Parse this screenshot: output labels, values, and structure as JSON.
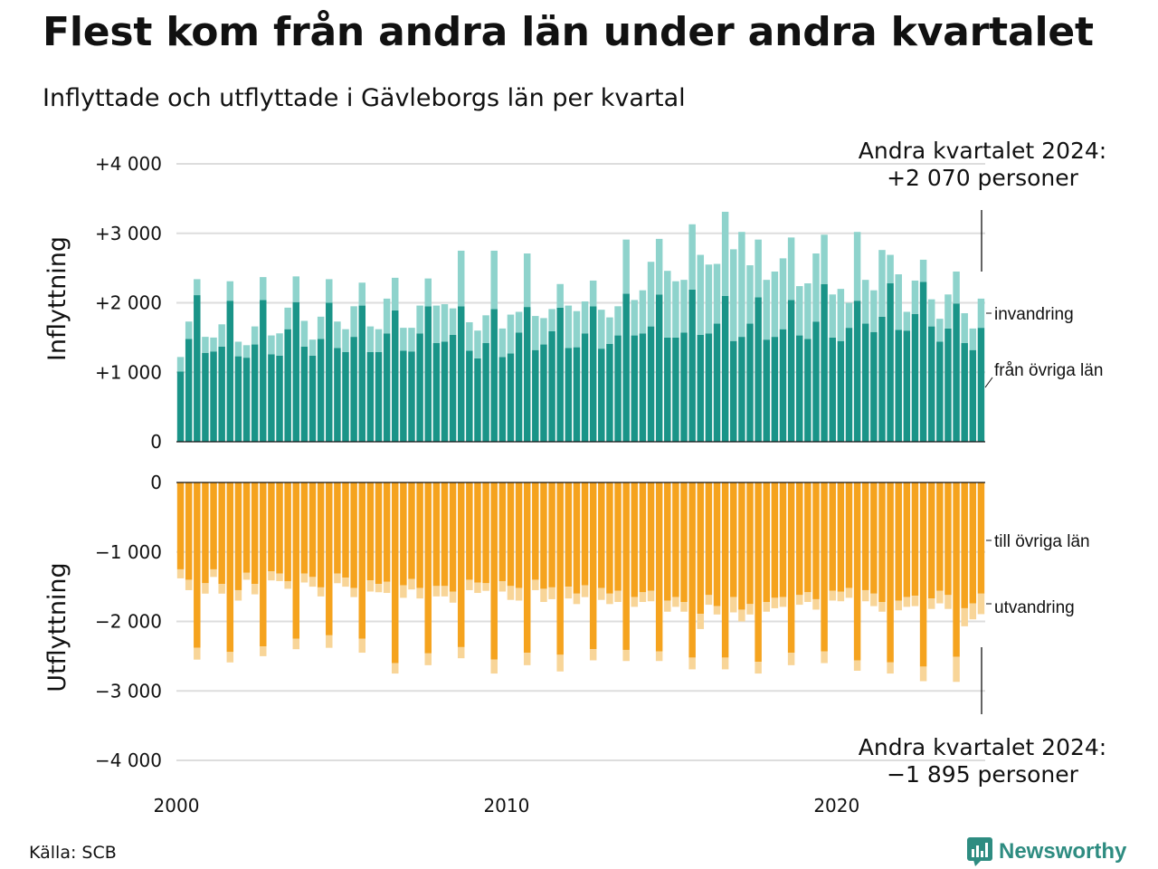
{
  "header": {
    "title": "Flest kom från andra län under andra kvartalet",
    "subtitle": "Inflyttade och utflyttade i Gävleborgs län per kvartal"
  },
  "footer": {
    "source": "Källa: SCB",
    "logo_text": "Newsworthy",
    "logo_icon": "bar-chart-speech-bubble-icon"
  },
  "colors": {
    "domestic_in": "#1a9488",
    "immigration": "#8ed3cc",
    "domestic_out": "#f5a31e",
    "emigration": "#f8d598",
    "grid": "#dddddd",
    "logo": "#2e8c81"
  },
  "chart_data": {
    "type": "bar",
    "x_start_quarter": "2000 Q1",
    "x_ticks": [
      "2000",
      "2010",
      "2020"
    ],
    "upper": {
      "ylabel": "Inflyttning",
      "ylim": [
        0,
        4000
      ],
      "y_ticks": [
        0,
        1000,
        2000,
        3000,
        4000
      ],
      "y_tick_labels": [
        "0",
        "+1 000",
        "+2 000",
        "+3 000",
        "+4 000"
      ],
      "series": [
        {
          "name": "från övriga län",
          "values": [
            1010,
            1480,
            2110,
            1280,
            1300,
            1370,
            2030,
            1230,
            1210,
            1400,
            2040,
            1260,
            1240,
            1620,
            2010,
            1370,
            1240,
            1480,
            2000,
            1350,
            1290,
            1510,
            1960,
            1290,
            1290,
            1560,
            1890,
            1310,
            1300,
            1560,
            1950,
            1420,
            1440,
            1540,
            1950,
            1310,
            1200,
            1420,
            1910,
            1220,
            1270,
            1570,
            1940,
            1320,
            1400,
            1590,
            1930,
            1350,
            1360,
            1560,
            1950,
            1340,
            1410,
            1530,
            2130,
            1530,
            1560,
            1660,
            2120,
            1500,
            1500,
            1570,
            2190,
            1540,
            1560,
            1700,
            2100,
            1450,
            1510,
            1700,
            2080,
            1470,
            1510,
            1620,
            2040,
            1530,
            1480,
            1730,
            2270,
            1500,
            1450,
            1640,
            2030,
            1700,
            1580,
            1800,
            2280,
            1610,
            1600,
            1840,
            2300,
            1660,
            1440,
            1630,
            1990,
            1420,
            1320,
            1640
          ]
        },
        {
          "name": "invandring",
          "values": [
            210,
            250,
            230,
            230,
            200,
            320,
            280,
            210,
            180,
            260,
            330,
            270,
            320,
            310,
            370,
            370,
            230,
            320,
            340,
            380,
            330,
            440,
            330,
            370,
            330,
            500,
            470,
            330,
            340,
            400,
            400,
            540,
            540,
            380,
            800,
            410,
            400,
            400,
            840,
            410,
            560,
            300,
            770,
            490,
            380,
            320,
            340,
            610,
            520,
            460,
            370,
            560,
            380,
            420,
            780,
            510,
            620,
            930,
            800,
            960,
            810,
            760,
            940,
            1150,
            990,
            860,
            1210,
            1320,
            1510,
            840,
            830,
            860,
            940,
            1020,
            900,
            710,
            800,
            980,
            710,
            620,
            750,
            360,
            990,
            630,
            600,
            960,
            410,
            800,
            270,
            480,
            320,
            390,
            330,
            490,
            460,
            430,
            310,
            420
          ]
        }
      ]
    },
    "lower": {
      "ylabel": "Utflyttning",
      "ylim": [
        -4000,
        0
      ],
      "y_ticks": [
        0,
        -1000,
        -2000,
        -3000,
        -4000
      ],
      "y_tick_labels": [
        "0",
        "−1 000",
        "−2 000",
        "−3 000",
        "−4 000"
      ],
      "series": [
        {
          "name": "till övriga län",
          "values": [
            -1250,
            -1400,
            -2380,
            -1450,
            -1250,
            -1460,
            -2440,
            -1550,
            -1300,
            -1460,
            -2360,
            -1280,
            -1310,
            -1420,
            -2250,
            -1310,
            -1360,
            -1510,
            -2200,
            -1310,
            -1370,
            -1520,
            -2250,
            -1410,
            -1460,
            -1430,
            -2600,
            -1480,
            -1390,
            -1520,
            -2460,
            -1490,
            -1490,
            -1570,
            -2370,
            -1400,
            -1440,
            -1450,
            -2550,
            -1420,
            -1490,
            -1520,
            -2450,
            -1400,
            -1530,
            -1510,
            -2480,
            -1500,
            -1600,
            -1480,
            -2400,
            -1520,
            -1600,
            -1560,
            -2410,
            -1650,
            -1580,
            -1560,
            -2430,
            -1700,
            -1650,
            -1720,
            -2520,
            -1890,
            -1620,
            -1780,
            -2520,
            -1650,
            -1830,
            -1750,
            -2580,
            -1720,
            -1660,
            -1650,
            -2450,
            -1620,
            -1580,
            -1680,
            -2430,
            -1560,
            -1570,
            -1520,
            -2560,
            -1550,
            -1600,
            -1720,
            -2590,
            -1700,
            -1650,
            -1630,
            -2650,
            -1670,
            -1560,
            -1620,
            -2510,
            -1810,
            -1740,
            -1600
          ]
        },
        {
          "name": "utvandring",
          "values": [
            -130,
            -150,
            -170,
            -150,
            -110,
            -140,
            -150,
            -150,
            -100,
            -150,
            -140,
            -130,
            -110,
            -110,
            -150,
            -130,
            -140,
            -130,
            -180,
            -140,
            -130,
            -130,
            -200,
            -160,
            -120,
            -160,
            -150,
            -180,
            -150,
            -150,
            -170,
            -150,
            -150,
            -160,
            -160,
            -150,
            -150,
            -110,
            -200,
            -150,
            -200,
            -180,
            -180,
            -150,
            -190,
            -170,
            -240,
            -170,
            -150,
            -170,
            -160,
            -170,
            -150,
            -160,
            -160,
            -140,
            -140,
            -150,
            -140,
            -160,
            -140,
            -140,
            -170,
            -220,
            -140,
            -120,
            -170,
            -220,
            -170,
            -150,
            -170,
            -140,
            -150,
            -140,
            -180,
            -140,
            -140,
            -150,
            -170,
            -140,
            -140,
            -140,
            -150,
            -160,
            -180,
            -140,
            -160,
            -140,
            -140,
            -150,
            -210,
            -150,
            -180,
            -200,
            -360,
            -260,
            -230,
            -295
          ]
        }
      ]
    },
    "annotations": {
      "top_title": "Andra kvartalet 2024:",
      "top_value": "+2 070 personer",
      "bottom_title": "Andra kvartalet 2024:",
      "bottom_value": "−1 895 personer"
    },
    "legend_placement": "right"
  }
}
